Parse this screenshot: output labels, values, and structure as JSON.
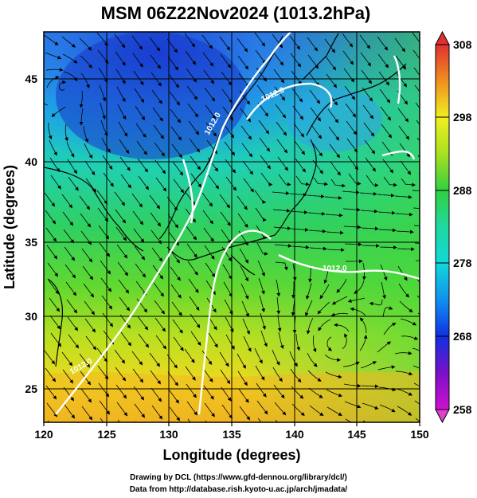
{
  "title": "MSM 06Z22Nov2024 (1013.2hPa)",
  "xlabel": "Longitude (degrees)",
  "ylabel": "Latitude  (degrees)",
  "x_ticks": [
    "120",
    "125",
    "130",
    "135",
    "140",
    "145",
    "150"
  ],
  "y_ticks": [
    "25",
    "30",
    "35",
    "40",
    "45"
  ],
  "colorbar_ticks": [
    "308",
    "298",
    "288",
    "278",
    "268",
    "258"
  ],
  "contour_labels": [
    "1012.0",
    "1012.0",
    "1012.0",
    "1012.0"
  ],
  "footer_line1": "Drawing by DCL (https://www.gfd-dennou.org/library/dcl/)",
  "footer_line2": "Data from http://database.rish.kyoto-u.ac.jp/arch/jmadata/",
  "chart_data": {
    "type": "heatmap",
    "title": "MSM 06Z22Nov2024 (1013.2hPa)",
    "xlabel": "Longitude (degrees)",
    "ylabel": "Latitude  (degrees)",
    "xlim": [
      120,
      150
    ],
    "ylim": [
      22.4,
      47.6
    ],
    "x_ticks": [
      120,
      125,
      130,
      135,
      140,
      145,
      150
    ],
    "y_ticks": [
      25,
      30,
      35,
      40,
      45
    ],
    "colorbar": {
      "min": 258,
      "max": 308,
      "ticks": [
        258,
        268,
        278,
        288,
        298,
        308
      ]
    },
    "grid": true,
    "overlays": [
      "streamlines",
      "white isobar contours 1012.0",
      "coastlines"
    ]
  }
}
